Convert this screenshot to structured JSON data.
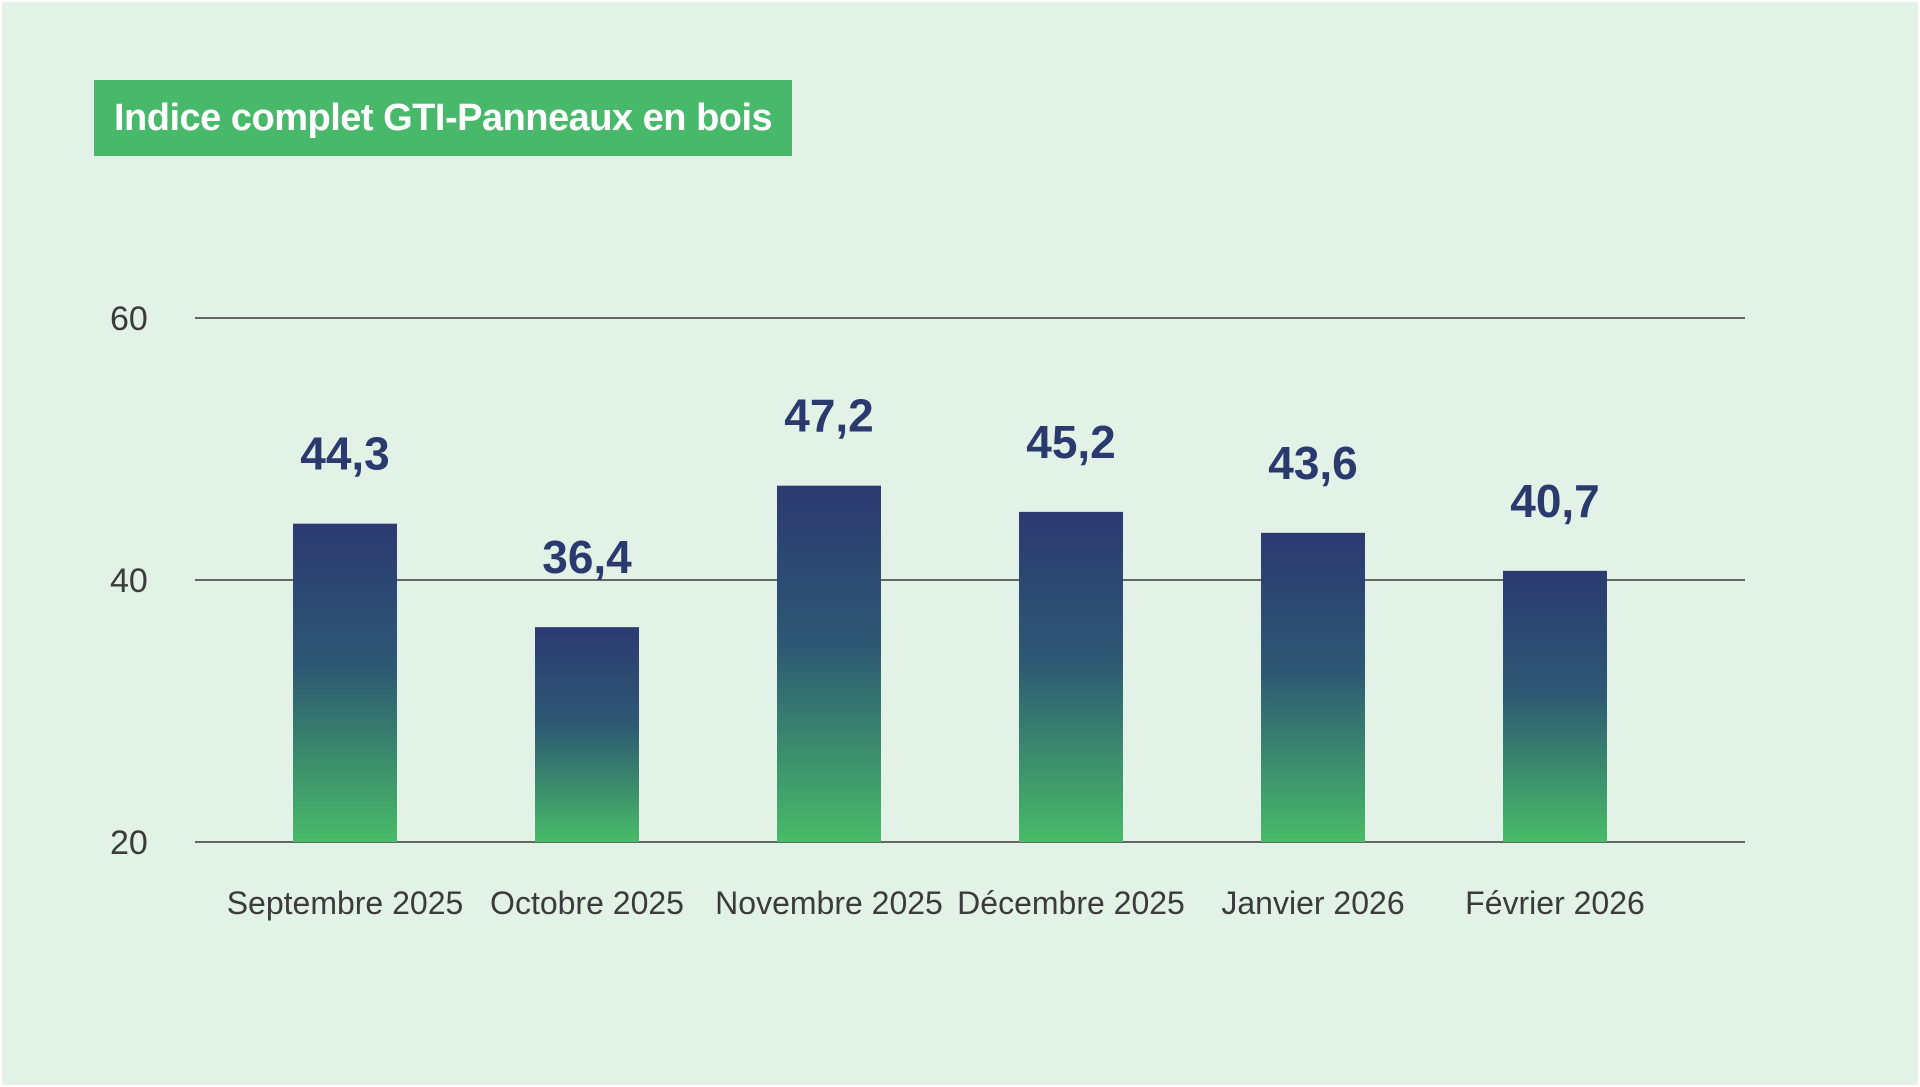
{
  "chart_data": {
    "type": "bar",
    "title": "Indice complet GTI-Panneaux en bois",
    "categories": [
      "Septembre 2025",
      "Octobre 2025",
      "Novembre 2025",
      "Décembre 2025",
      "Janvier 2026",
      "Février 2026"
    ],
    "values": [
      44.3,
      36.4,
      47.2,
      45.2,
      43.6,
      40.7
    ],
    "value_labels": [
      "44,3",
      "36,4",
      "47,2",
      "45,2",
      "43,6",
      "40,7"
    ],
    "ylim": [
      20,
      60
    ],
    "yticks": [
      20,
      40,
      60
    ],
    "ytick_labels": [
      "20",
      "40",
      "60"
    ],
    "xlabel": "",
    "ylabel": "",
    "grid": true,
    "colors": {
      "bar_top": "#2c3a72",
      "bar_bottom": "#48bb68",
      "data_label": "#2a3a6e",
      "gridline": "#3a3a3a",
      "title_bg": "#48b86a",
      "background": "#e2f2e6"
    }
  }
}
